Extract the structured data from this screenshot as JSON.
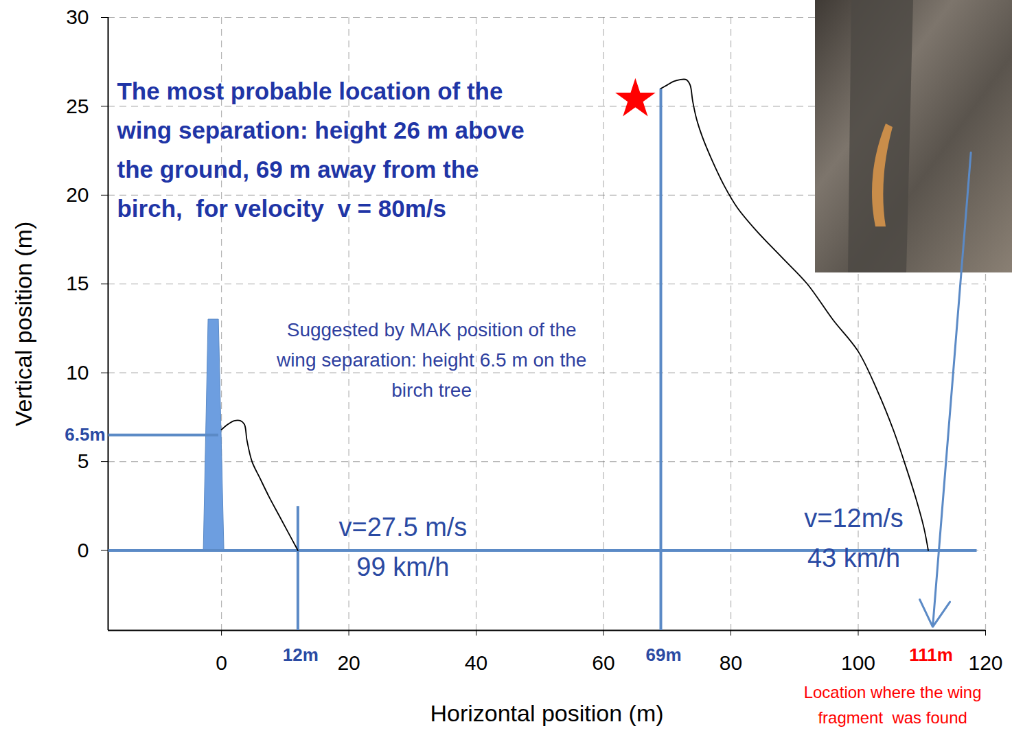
{
  "chart_data": {
    "type": "line",
    "xlabel": "Horizontal position (m)",
    "ylabel": "Vertical position (m)",
    "xlim": [
      -17.8,
      120
    ],
    "ylim": [
      -4.5,
      30
    ],
    "xticks": [
      0,
      20,
      40,
      60,
      80,
      100,
      120
    ],
    "yticks": [
      0,
      5,
      10,
      15,
      20,
      25,
      30
    ],
    "grid": true,
    "series": [
      {
        "color": "#000000",
        "x": [
          0,
          1,
          2,
          3,
          3.6,
          4,
          4.8,
          6,
          7.5,
          9,
          10.5,
          12
        ],
        "values": [
          6.8,
          7.1,
          7.3,
          7.3,
          7.1,
          6.2,
          5.0,
          4.1,
          3.0,
          2.0,
          1.0,
          0
        ]
      },
      {
        "color": "#000000",
        "x": [
          69,
          70,
          71,
          72,
          73,
          73.6,
          74,
          74.6,
          75.5,
          77,
          79,
          81,
          84,
          88,
          92,
          96,
          100,
          103,
          105.5,
          107.5,
          109,
          110.3,
          111
        ],
        "values": [
          26,
          26.2,
          26.4,
          26.5,
          26.5,
          26.2,
          25.3,
          24.3,
          23.3,
          22,
          20.5,
          19.3,
          18,
          16.5,
          15,
          13,
          11.2,
          9,
          6.8,
          4.7,
          3,
          1.3,
          0
        ]
      }
    ],
    "annotations": {
      "main_note": {
        "lines": [
          "The most probable location of the",
          "wing separation: height 26 m above",
          "the ground, 69 m away from the",
          "birch,  for velocity  v = 80m/s"
        ],
        "x": -16.4,
        "y": 25.8,
        "color": "#1f35a6"
      },
      "mak_note": {
        "lines": [
          "Suggested by MAK position of the",
          "wing separation: height 6.5 m on the",
          "birch tree"
        ],
        "x": 33,
        "y": 12.4,
        "color": "#2e3f9f"
      },
      "speed_at_12m": {
        "lines": [
          "v=27.5 m/s",
          "99 km/h"
        ],
        "x": 28.5,
        "y": 1.3,
        "color": "#2a4aa3"
      },
      "speed_at_111m": {
        "lines": [
          "v=12m/s",
          "43 km/h"
        ],
        "x": 99.3,
        "y": 1.8,
        "color": "#2a4aa3"
      },
      "found_note": {
        "lines": [
          "Location where the wing",
          "fragment  was found"
        ],
        "x": 105.4,
        "y": -8.0,
        "color": "#ff0000"
      },
      "birch": {
        "y": [
          0,
          13
        ],
        "x_left": [
          -2.8,
          -2.05
        ],
        "x_right": [
          0.43,
          -0.43
        ],
        "color": "#6d9ee0"
      },
      "star": {
        "x": 65,
        "y": 25.4,
        "color": "#ff0000"
      },
      "markers": [
        {
          "axis": "y",
          "value": 6.5,
          "label": "6.5m",
          "color": "#2a4aa3"
        },
        {
          "axis": "x",
          "value": 12,
          "label": "12m",
          "color": "#2a4aa3"
        },
        {
          "axis": "x",
          "value": 69,
          "label": "69m",
          "color": "#2a4aa3"
        },
        {
          "axis": "x",
          "value": 111,
          "label": "111m",
          "color": "#ff0000"
        }
      ],
      "guide_color": "#5b8ac6",
      "guides": [
        {
          "x1": -17.8,
          "y1": 0,
          "x2": 118.6,
          "y2": 0
        },
        {
          "x1": 12,
          "y1": -4.5,
          "x2": 12,
          "y2": 2.5
        },
        {
          "x1": 69,
          "y1": -4.5,
          "x2": 69,
          "y2": 26
        },
        {
          "x1": -17.8,
          "y1": 6.5,
          "x2": -0.5,
          "y2": 6.5
        }
      ],
      "arrow": {
        "x1": 117.7,
        "y1": 22.4,
        "x2": 111.7,
        "y2": -4.3,
        "color": "#5b8ac6"
      }
    }
  }
}
